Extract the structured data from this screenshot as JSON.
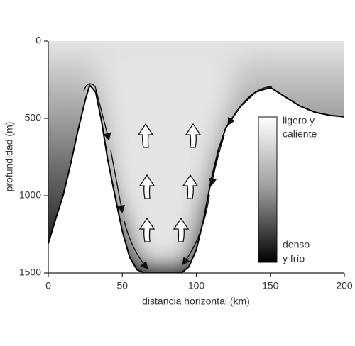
{
  "chart_data": {
    "type": "section",
    "x_label": "distancia horizontal (km)",
    "y_label": "profundidad (m)",
    "x": [
      0,
      5,
      10,
      15,
      20,
      25,
      28,
      32,
      36,
      40,
      45,
      50,
      55,
      60,
      65,
      70,
      80,
      90,
      95,
      100,
      105,
      110,
      115,
      120,
      130,
      140,
      150,
      160,
      170,
      180,
      190,
      200
    ],
    "values": [
      1310,
      1150,
      1000,
      800,
      580,
      380,
      285,
      330,
      520,
      760,
      1000,
      1230,
      1400,
      1480,
      1500,
      1500,
      1500,
      1500,
      1460,
      1350,
      1150,
      900,
      700,
      560,
      420,
      330,
      300,
      360,
      420,
      460,
      480,
      490
    ],
    "xlim": [
      0,
      200
    ],
    "ylim": [
      1500,
      0
    ],
    "xticks": [
      0,
      50,
      100,
      150,
      200
    ],
    "yticks": [
      0,
      500,
      1000,
      1500
    ],
    "colorbar": {
      "top_label": [
        "ligero y",
        "caliente"
      ],
      "bottom_label": [
        "denso",
        "y frío"
      ]
    }
  }
}
